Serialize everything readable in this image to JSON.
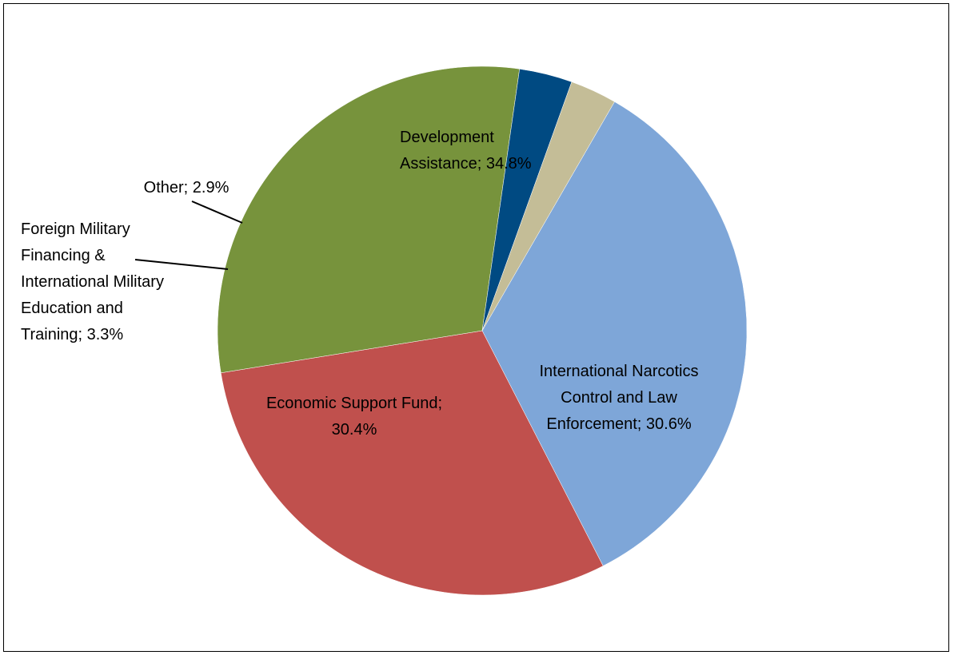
{
  "chart_data": {
    "type": "pie",
    "title": "",
    "slices": [
      {
        "name": "Development Assistance",
        "value": 34.8,
        "label_lines": [
          "Development",
          "Assistance; 34.8%"
        ],
        "color": "#7EA6D8"
      },
      {
        "name": "International Narcotics Control and Law Enforcement",
        "value": 30.6,
        "label_lines": [
          "International Narcotics",
          "Control and Law",
          "Enforcement; 30.6%"
        ],
        "color": "#C0504D"
      },
      {
        "name": "Economic Support Fund",
        "value": 30.4,
        "label_lines": [
          "Economic Support Fund;",
          "30.4%"
        ],
        "color": "#77933C"
      },
      {
        "name": "Foreign Military Financing & International Military Education and Training",
        "value": 3.3,
        "label_lines": [
          "Foreign Military",
          "Financing &",
          "International Military",
          "Education and",
          "Training; 3.3%"
        ],
        "color": "#004A82"
      },
      {
        "name": "Other",
        "value": 2.9,
        "label_lines": [
          "Other; 2.9%"
        ],
        "color": "#C4BD97"
      }
    ],
    "start_angle_deg": 30,
    "direction": "clockwise",
    "legend": "none"
  }
}
